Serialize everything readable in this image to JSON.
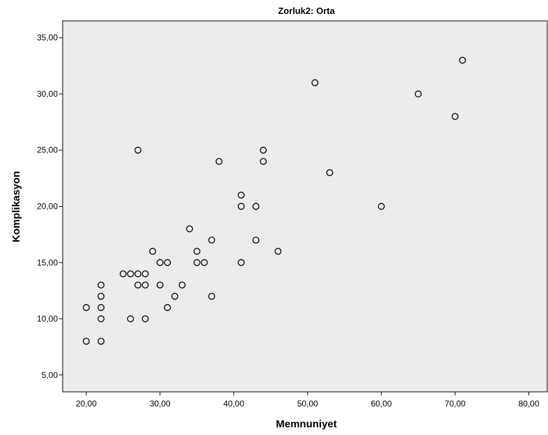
{
  "chart_data": {
    "type": "scatter",
    "title": "Zorluk2: Orta",
    "xlabel": "Memnuniyet",
    "ylabel": "Komplikasyon",
    "xlim": [
      16.8,
      82.5
    ],
    "ylim": [
      3.5,
      36.5
    ],
    "x_ticks": [
      20,
      30,
      40,
      50,
      60,
      70,
      80
    ],
    "y_ticks": [
      5,
      10,
      15,
      20,
      25,
      30,
      35
    ],
    "x_tick_labels": [
      "20,00",
      "30,00",
      "40,00",
      "50,00",
      "60,00",
      "70,00",
      "80,00"
    ],
    "y_tick_labels": [
      "5,00",
      "10,00",
      "15,00",
      "20,00",
      "25,00",
      "30,00",
      "35,00"
    ],
    "grid": false,
    "plot_background": "#ececec",
    "marker_color": "#000000",
    "points": [
      {
        "x": 20,
        "y": 8
      },
      {
        "x": 20,
        "y": 11
      },
      {
        "x": 22,
        "y": 8
      },
      {
        "x": 22,
        "y": 10
      },
      {
        "x": 22,
        "y": 11
      },
      {
        "x": 22,
        "y": 12
      },
      {
        "x": 22,
        "y": 13
      },
      {
        "x": 25,
        "y": 14
      },
      {
        "x": 26,
        "y": 10
      },
      {
        "x": 26,
        "y": 14
      },
      {
        "x": 27,
        "y": 13
      },
      {
        "x": 27,
        "y": 14
      },
      {
        "x": 27,
        "y": 25
      },
      {
        "x": 28,
        "y": 10
      },
      {
        "x": 28,
        "y": 13
      },
      {
        "x": 28,
        "y": 14
      },
      {
        "x": 29,
        "y": 16
      },
      {
        "x": 30,
        "y": 13
      },
      {
        "x": 30,
        "y": 15
      },
      {
        "x": 31,
        "y": 11
      },
      {
        "x": 31,
        "y": 15
      },
      {
        "x": 32,
        "y": 12
      },
      {
        "x": 33,
        "y": 13
      },
      {
        "x": 34,
        "y": 18
      },
      {
        "x": 35,
        "y": 15
      },
      {
        "x": 35,
        "y": 16
      },
      {
        "x": 36,
        "y": 15
      },
      {
        "x": 37,
        "y": 12
      },
      {
        "x": 37,
        "y": 17
      },
      {
        "x": 38,
        "y": 24
      },
      {
        "x": 41,
        "y": 15
      },
      {
        "x": 41,
        "y": 20
      },
      {
        "x": 41,
        "y": 21
      },
      {
        "x": 43,
        "y": 17
      },
      {
        "x": 43,
        "y": 20
      },
      {
        "x": 44,
        "y": 24
      },
      {
        "x": 44,
        "y": 25
      },
      {
        "x": 46,
        "y": 16
      },
      {
        "x": 51,
        "y": 31
      },
      {
        "x": 53,
        "y": 23
      },
      {
        "x": 60,
        "y": 20
      },
      {
        "x": 65,
        "y": 30
      },
      {
        "x": 70,
        "y": 28
      },
      {
        "x": 71,
        "y": 33
      }
    ]
  }
}
